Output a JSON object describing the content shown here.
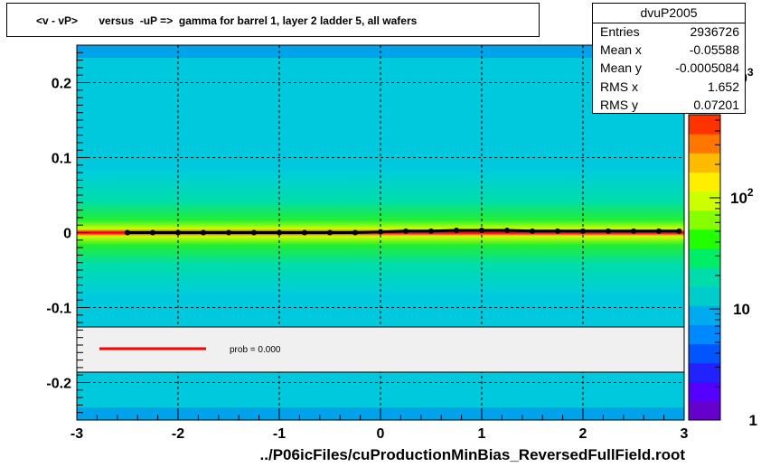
{
  "chart_data": {
    "type": "heatmap",
    "title": "<v - vP>       versus  -uP =>  gamma for barrel 1, layer 2 ladder 5, all wafers",
    "xlabel": "../P06icFiles/cuProductionMinBias_ReversedFullField.root",
    "ylabel": "",
    "xlim": [
      -3,
      3
    ],
    "ylim": [
      -0.25,
      0.25
    ],
    "x_ticks": [
      "-3",
      "-2",
      "-1",
      "0",
      "1",
      "2",
      "3"
    ],
    "y_ticks": [
      "-0.2",
      "-0.1",
      "0",
      "0.1",
      "0.2"
    ],
    "grid": true,
    "colorbar": {
      "scale": "log",
      "ticks": [
        "1",
        "10",
        "10^2",
        "10^3"
      ],
      "colors": [
        "#6600cc",
        "#5500ff",
        "#2222ff",
        "#0055ff",
        "#0088ff",
        "#00aaee",
        "#00cccc",
        "#00ddaa",
        "#00ee66",
        "#22ff00",
        "#88ff00",
        "#ccff00",
        "#ffee00",
        "#ffbb00",
        "#ff7700",
        "#ff3300"
      ]
    },
    "profile_points": {
      "x": [
        -2.5,
        -2.25,
        -2.0,
        -1.75,
        -1.5,
        -1.25,
        -1.0,
        -0.75,
        -0.5,
        -0.25,
        0.0,
        0.25,
        0.5,
        0.75,
        1.0,
        1.25,
        1.5,
        1.75,
        2.0,
        2.25,
        2.5,
        2.75,
        2.95
      ],
      "y": [
        0.0,
        0.0,
        0.0,
        0.0,
        0.0,
        0.0,
        0.0,
        0.0,
        0.0,
        0.0,
        0.001,
        0.002,
        0.002,
        0.003,
        0.003,
        0.003,
        0.002,
        0.002,
        0.002,
        0.002,
        0.002,
        0.002,
        0.002
      ]
    },
    "fit_legend": {
      "label": "prob = 0.000",
      "color": "#ff0000"
    },
    "stats": {
      "name": "dvuP2005",
      "rows": [
        {
          "label": "Entries",
          "value": "2936726"
        },
        {
          "label": "Mean x",
          "value": "-0.05588"
        },
        {
          "label": "Mean y",
          "value": "-0.0005084"
        },
        {
          "label": "RMS x",
          "value": "1.652"
        },
        {
          "label": "RMS y",
          "value": "0.07201"
        }
      ]
    }
  }
}
